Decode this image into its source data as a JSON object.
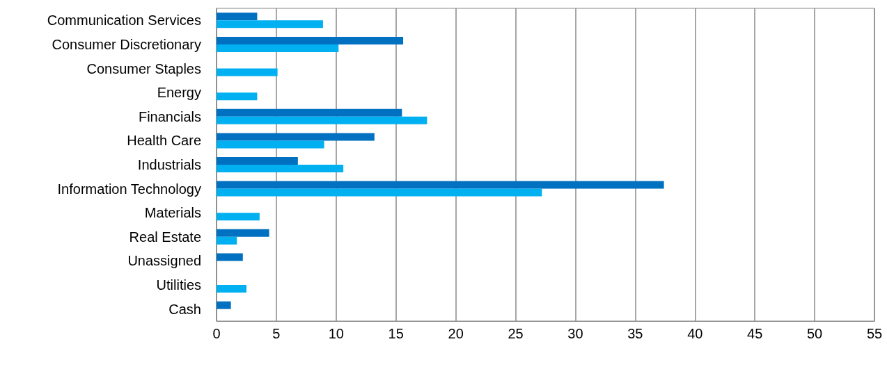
{
  "chart_data": {
    "type": "bar",
    "orientation": "horizontal",
    "categories": [
      "Communication Services",
      "Consumer Discretionary",
      "Consumer Staples",
      "Energy",
      "Financials",
      "Health Care",
      "Industrials",
      "Information Technology",
      "Materials",
      "Real Estate",
      "Unassigned",
      "Utilities",
      "Cash"
    ],
    "series": [
      {
        "color": "#0070c0",
        "values": [
          3.4,
          15.6,
          null,
          null,
          15.5,
          13.2,
          6.8,
          37.4,
          null,
          4.4,
          2.2,
          null,
          1.2
        ]
      },
      {
        "color": "#00b0f0",
        "values": [
          8.9,
          10.2,
          5.1,
          3.4,
          17.6,
          9.0,
          10.6,
          27.2,
          3.6,
          1.7,
          null,
          2.5,
          null
        ]
      }
    ],
    "xlim": [
      0,
      55
    ],
    "xticks": [
      0,
      5,
      10,
      15,
      20,
      25,
      30,
      35,
      40,
      45,
      50,
      55
    ],
    "grid": "x"
  }
}
